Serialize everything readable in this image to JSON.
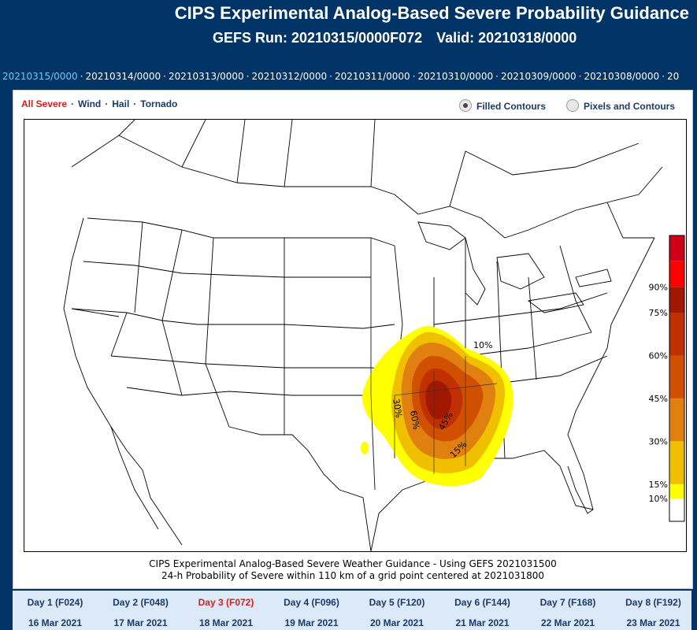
{
  "header": {
    "title": "CIPS Experimental Analog-Based Severe Probability Guidance",
    "run_label": "GEFS Run: 20210315/0000F072",
    "valid_label": "Valid: 20210318/0000"
  },
  "runs": [
    "20210315/0000",
    "20210314/0000",
    "20210313/0000",
    "20210312/0000",
    "20210311/0000",
    "20210310/0000",
    "20210309/0000",
    "20210308/0000",
    "20"
  ],
  "active_run": 0,
  "hazards": [
    "All Severe",
    "Wind",
    "Hail",
    "Tornado"
  ],
  "active_hazard": 0,
  "display_modes": [
    "Filled Contours",
    "Pixels and Contours"
  ],
  "selected_mode": 0,
  "map": {
    "contour_labels": [
      "10%",
      "30%",
      "60%",
      "45%",
      "15%"
    ],
    "colorbar": {
      "labels": [
        "90%",
        "75%",
        "60%",
        "45%",
        "30%",
        "15%",
        "10%"
      ],
      "colors": [
        "#ffffff",
        "#ffff00",
        "#f0c000",
        "#e08010",
        "#d05000",
        "#c03000",
        "#a01800",
        "#ff0000",
        "#d0001a",
        "#a0108a"
      ]
    },
    "caption_line1": "CIPS Experimental Analog-Based Severe Weather Guidance - Using GEFS 2021031500",
    "caption_line2": "24-h Probability of Severe within 110 km of a grid point centered at 2021031800"
  },
  "days": [
    {
      "label": "Day 1 (F024)",
      "date": "16 Mar 2021"
    },
    {
      "label": "Day 2 (F048)",
      "date": "17 Mar 2021"
    },
    {
      "label": "Day 3 (F072)",
      "date": "18 Mar 2021"
    },
    {
      "label": "Day 4 (F096)",
      "date": "19 Mar 2021"
    },
    {
      "label": "Day 5 (F120)",
      "date": "20 Mar 2021"
    },
    {
      "label": "Day 6 (F144)",
      "date": "21 Mar 2021"
    },
    {
      "label": "Day 7 (F168)",
      "date": "22 Mar 2021"
    },
    {
      "label": "Day 8 (F192)",
      "date": "23 Mar 2021"
    }
  ],
  "active_day": 2
}
